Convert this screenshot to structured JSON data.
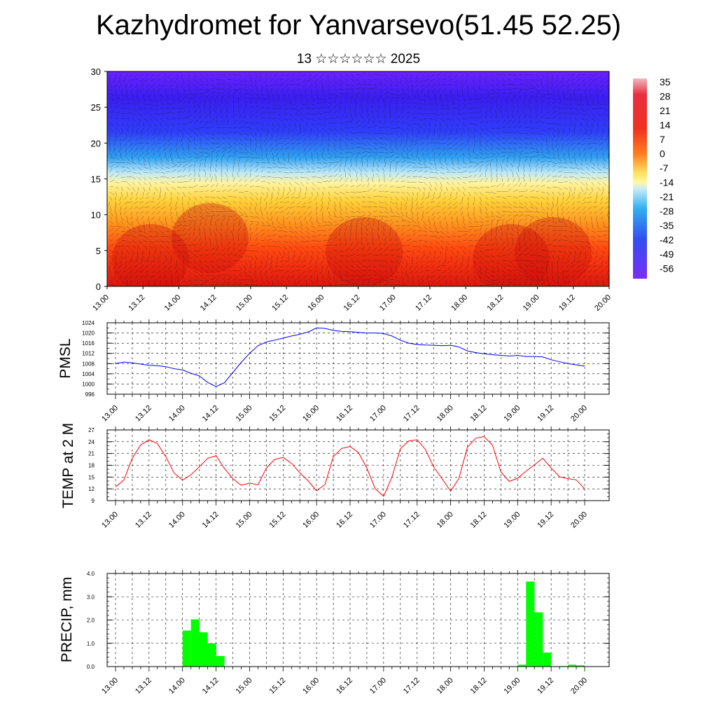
{
  "title": "Kazhydromet for Yanvarsevo(51.45 52.25)",
  "subtitle": "13 ☆☆☆☆☆☆ 2025",
  "x_tick_labels": [
    "13.00",
    "13.12",
    "14.00",
    "14.12",
    "15.00",
    "15.12",
    "16.00",
    "16.12",
    "17.00",
    "17.12",
    "18.00",
    "18.12",
    "19.00",
    "19.12",
    "20.00"
  ],
  "colors": {
    "pmsl_line": "#0000ff",
    "temp_line": "#ff0000",
    "precip_bar": "#00ff00"
  },
  "chart_data": [
    {
      "type": "heatmap",
      "id": "cross-section",
      "xlabel": "",
      "ylabel": "",
      "ylim": [
        0,
        30
      ],
      "y_ticks": [
        0,
        5,
        10,
        15,
        20,
        25,
        30
      ],
      "colorbar_labels": [
        "35",
        "28",
        "21",
        "14",
        "7",
        "0",
        "-7",
        "-14",
        "-21",
        "-28",
        "-35",
        "-42",
        "-49",
        "-56"
      ],
      "colorbar_range": [
        -63,
        38
      ],
      "overlay": "wind barbs"
    },
    {
      "type": "line",
      "id": "pmsl",
      "ylabel": "PMSL",
      "ylim": [
        996,
        1024
      ],
      "y_ticks": [
        996,
        1000,
        1004,
        1008,
        1012,
        1016,
        1020,
        1024
      ],
      "x": [
        0,
        3,
        6,
        9,
        12,
        15,
        18,
        21,
        24,
        27,
        30,
        33,
        36,
        39,
        42,
        45,
        48,
        51,
        54,
        57,
        60,
        63,
        66,
        69,
        72,
        75,
        78,
        81,
        84,
        87,
        90,
        93,
        96,
        99,
        102,
        105,
        108,
        111,
        114,
        117,
        120,
        123,
        126,
        129,
        132,
        135,
        138,
        141,
        144,
        147,
        150,
        153,
        156,
        159,
        162,
        165,
        168
      ],
      "values": [
        1008,
        1008.6,
        1008.3,
        1007.8,
        1007.3,
        1007.2,
        1006.8,
        1006,
        1005.5,
        1004.2,
        1003.2,
        1000.6,
        999,
        1000.5,
        1004.5,
        1008.5,
        1012,
        1015,
        1016.5,
        1017.2,
        1018,
        1018.8,
        1019.5,
        1020.4,
        1022,
        1021.8,
        1021,
        1020.6,
        1020.5,
        1020.2,
        1020,
        1020,
        1019.8,
        1018.8,
        1017.2,
        1016,
        1015.5,
        1015.3,
        1015.2,
        1015,
        1015.2,
        1014.5,
        1013,
        1012.3,
        1011.8,
        1011.5,
        1011.2,
        1011,
        1011.2,
        1010.8,
        1010.8,
        1010.6,
        1009.5,
        1008.7,
        1008,
        1007.5,
        1007
      ]
    },
    {
      "type": "line",
      "id": "temp2m",
      "ylabel": "TEMP at 2 M",
      "ylim": [
        9,
        27
      ],
      "y_ticks": [
        9,
        12,
        15,
        18,
        21,
        24,
        27
      ],
      "x": [
        0,
        3,
        6,
        9,
        12,
        15,
        18,
        21,
        24,
        27,
        30,
        33,
        36,
        39,
        42,
        45,
        48,
        51,
        54,
        57,
        60,
        63,
        66,
        69,
        72,
        75,
        78,
        81,
        84,
        87,
        90,
        93,
        96,
        99,
        102,
        105,
        108,
        111,
        114,
        117,
        120,
        123,
        126,
        129,
        132,
        135,
        138,
        141,
        144,
        147,
        150,
        153,
        156,
        159,
        162,
        165,
        168
      ],
      "values": [
        12.5,
        14.3,
        19.8,
        23.2,
        24.5,
        23.5,
        20.2,
        16,
        14.2,
        15.6,
        17.6,
        19.8,
        20.4,
        17.2,
        14.6,
        12.9,
        13.5,
        13,
        17.3,
        19.5,
        20,
        18.5,
        16.1,
        14,
        11.5,
        13.1,
        20.2,
        22.3,
        22.8,
        21.2,
        17.3,
        12,
        10.1,
        15,
        22.2,
        24.2,
        24.5,
        22,
        17.5,
        14.5,
        11.4,
        14.7,
        22.6,
        24.9,
        25.3,
        23.1,
        16.3,
        13.9,
        14.7,
        16.5,
        18.1,
        19.8,
        17.3,
        15.1,
        14.6,
        14.3,
        12
      ]
    },
    {
      "type": "bar",
      "id": "precip",
      "ylabel": "PRECIP, mm",
      "ylim": [
        0,
        4
      ],
      "y_ticks": [
        "0.0",
        "1.0",
        "2.0",
        "3.0",
        "4.0"
      ],
      "x": [
        27,
        30,
        33,
        36,
        39,
        147,
        150,
        153,
        156,
        162,
        165,
        168
      ],
      "values": [
        1.55,
        2.03,
        1.47,
        1.0,
        0.45,
        0.08,
        3.65,
        2.33,
        0.6,
        0.02,
        0.08,
        0.05
      ]
    }
  ]
}
